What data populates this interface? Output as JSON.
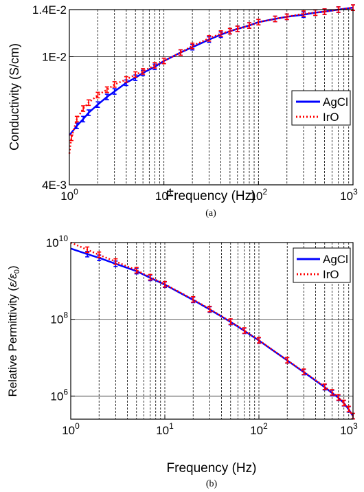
{
  "figure": {
    "panels": [
      {
        "caption": "(a)",
        "xlabel": "Frequency (Hz)",
        "ylabel": "Conductivity (S/cm)",
        "xticks": [
          {
            "v": 1,
            "base": "10",
            "exp": "0"
          },
          {
            "v": 10,
            "base": "10",
            "exp": "1"
          },
          {
            "v": 100,
            "base": "10",
            "exp": "2"
          },
          {
            "v": 1000,
            "base": "10",
            "exp": "3"
          }
        ],
        "yticks": [
          {
            "v": 0.004,
            "label": "4E-3"
          },
          {
            "v": 0.01,
            "label": "1E-2"
          },
          {
            "v": 0.014,
            "label": "1.4E-2"
          }
        ],
        "legend": [
          "AgCl",
          "IrO"
        ]
      },
      {
        "caption": "(b)",
        "xlabel": "Frequency (Hz)",
        "ylabel_main": "Relative Permittivity (",
        "ylabel_eps": "ε/ε",
        "ylabel_sub": "0",
        "ylabel_end": ")",
        "xticks": [
          {
            "v": 1,
            "base": "10",
            "exp": "0"
          },
          {
            "v": 10,
            "base": "10",
            "exp": "1"
          },
          {
            "v": 100,
            "base": "10",
            "exp": "2"
          },
          {
            "v": 1000,
            "base": "10",
            "exp": "3"
          }
        ],
        "yticks": [
          {
            "v": 1000000,
            "base": "10",
            "exp": "6"
          },
          {
            "v": 100000000,
            "base": "10",
            "exp": "8"
          },
          {
            "v": 10000000000,
            "base": "10",
            "exp": "10"
          }
        ],
        "legend": [
          "AgCl",
          "IrO"
        ]
      }
    ]
  },
  "chart_data": [
    {
      "type": "line",
      "xlabel": "Frequency (Hz)",
      "ylabel": "Conductivity (S/cm)",
      "x_scale": "log",
      "y_scale": "log",
      "xlim": [
        1,
        1000
      ],
      "ylim": [
        0.004,
        0.014
      ],
      "grid": true,
      "legend_position": "right",
      "series": [
        {
          "name": "AgCl",
          "color": "#0000ff",
          "style": "solid",
          "x": [
            1,
            1.2,
            1.4,
            1.6,
            2,
            2.5,
            3,
            4,
            5,
            6,
            8,
            10,
            15,
            20,
            30,
            40,
            50,
            60,
            80,
            100,
            150,
            200,
            300,
            400,
            500,
            700,
            1000
          ],
          "y": [
            0.0057,
            0.0061,
            0.0064,
            0.0067,
            0.0071,
            0.0075,
            0.0078,
            0.0083,
            0.0086,
            0.0089,
            0.0093,
            0.0097,
            0.0103,
            0.0107,
            0.0113,
            0.0117,
            0.012,
            0.0122,
            0.0125,
            0.0128,
            0.0131,
            0.0133,
            0.0135,
            0.0137,
            0.0138,
            0.014,
            0.0142
          ]
        },
        {
          "name": "IrO",
          "color": "#ff0000",
          "style": "dotted",
          "x": [
            1,
            1.05,
            1.2,
            1.4,
            1.6,
            2,
            2.5,
            3,
            4,
            5,
            6,
            8,
            10,
            15,
            20,
            30,
            40,
            50,
            60,
            80,
            100,
            150,
            200,
            300,
            400,
            500,
            700,
            1000
          ],
          "y": [
            0.005,
            0.0056,
            0.0064,
            0.0069,
            0.0072,
            0.0076,
            0.0079,
            0.0082,
            0.0085,
            0.0088,
            0.009,
            0.0094,
            0.0097,
            0.0103,
            0.0108,
            0.0114,
            0.0118,
            0.012,
            0.0122,
            0.0125,
            0.0128,
            0.0131,
            0.0133,
            0.0136,
            0.0137,
            0.0138,
            0.014,
            0.0142
          ]
        }
      ]
    },
    {
      "type": "line",
      "xlabel": "Frequency (Hz)",
      "ylabel": "Relative Permittivity (ε/ε0)",
      "x_scale": "log",
      "y_scale": "log",
      "xlim": [
        1,
        1000
      ],
      "ylim": [
        250000,
        10000000000
      ],
      "grid": true,
      "legend_position": "top-right",
      "series": [
        {
          "name": "AgCl",
          "color": "#0000ff",
          "style": "solid",
          "x": [
            1,
            1.5,
            2,
            3,
            5,
            7,
            10,
            20,
            30,
            50,
            70,
            100,
            200,
            300,
            500,
            600,
            700,
            800,
            900,
            1000
          ],
          "y": [
            7000000000,
            5000000000,
            4000000000,
            2800000000,
            1800000000,
            1200000000,
            800000000,
            320000000,
            180000000,
            85000000,
            50000000,
            28000000,
            8500000,
            4200000,
            1700000,
            1200000,
            900000,
            650000,
            450000,
            300000
          ]
        },
        {
          "name": "IrO",
          "color": "#ff0000",
          "style": "dotted",
          "x": [
            1,
            1.5,
            2,
            3,
            5,
            7,
            10,
            20,
            30,
            50,
            70,
            100,
            200,
            300,
            500,
            600,
            700,
            800,
            900,
            1000
          ],
          "y": [
            10000000000,
            6500000000,
            4800000000,
            3200000000,
            1900000000,
            1250000000,
            820000000,
            330000000,
            185000000,
            87000000,
            51000000,
            28500000,
            8600000,
            4300000,
            1750000,
            1250000,
            920000,
            660000,
            460000,
            300000
          ]
        }
      ]
    }
  ]
}
